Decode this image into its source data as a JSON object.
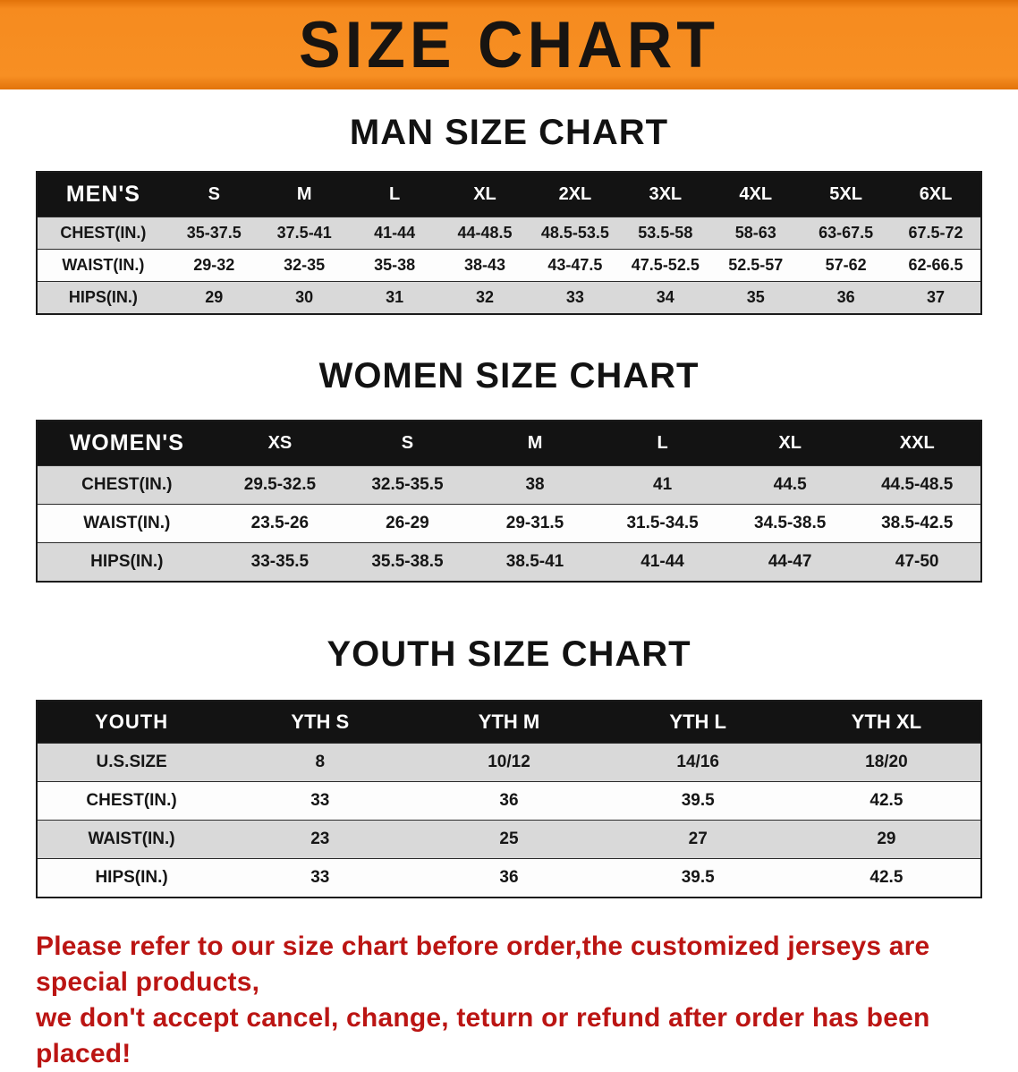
{
  "banner": {
    "title": "SIZE CHART",
    "bg_color": "#f68b1f",
    "text_color": "#181411"
  },
  "sections": [
    {
      "title": "MAN SIZE CHART",
      "table": {
        "header_label": "MEN'S",
        "sizes": [
          "S",
          "M",
          "L",
          "XL",
          "2XL",
          "3XL",
          "4XL",
          "5XL",
          "6XL"
        ],
        "rows": [
          {
            "label": "CHEST(IN.)",
            "values": [
              "35-37.5",
              "37.5-41",
              "41-44",
              "44-48.5",
              "48.5-53.5",
              "53.5-58",
              "58-63",
              "63-67.5",
              "67.5-72"
            ]
          },
          {
            "label": "WAIST(IN.)",
            "values": [
              "29-32",
              "32-35",
              "35-38",
              "38-43",
              "43-47.5",
              "47.5-52.5",
              "52.5-57",
              "57-62",
              "62-66.5"
            ]
          },
          {
            "label": "HIPS(IN.)",
            "values": [
              "29",
              "30",
              "31",
              "32",
              "33",
              "34",
              "35",
              "36",
              "37"
            ]
          }
        ]
      }
    },
    {
      "title": "WOMEN SIZE CHART",
      "table": {
        "header_label": "WOMEN'S",
        "sizes": [
          "XS",
          "S",
          "M",
          "L",
          "XL",
          "XXL"
        ],
        "rows": [
          {
            "label": "CHEST(IN.)",
            "values": [
              "29.5-32.5",
              "32.5-35.5",
              "38",
              "41",
              "44.5",
              "44.5-48.5"
            ]
          },
          {
            "label": "WAIST(IN.)",
            "values": [
              "23.5-26",
              "26-29",
              "29-31.5",
              "31.5-34.5",
              "34.5-38.5",
              "38.5-42.5"
            ]
          },
          {
            "label": "HIPS(IN.)",
            "values": [
              "33-35.5",
              "35.5-38.5",
              "38.5-41",
              "41-44",
              "44-47",
              "47-50"
            ]
          }
        ]
      }
    },
    {
      "title": "YOUTH SIZE CHART",
      "table": {
        "header_label": "YOUTH",
        "sizes": [
          "YTH S",
          "YTH M",
          "YTH L",
          "YTH XL"
        ],
        "rows": [
          {
            "label": "U.S.SIZE",
            "values": [
              "8",
              "10/12",
              "14/16",
              "18/20"
            ]
          },
          {
            "label": "CHEST(IN.)",
            "values": [
              "33",
              "36",
              "39.5",
              "42.5"
            ]
          },
          {
            "label": "WAIST(IN.)",
            "values": [
              "23",
              "25",
              "27",
              "29"
            ]
          },
          {
            "label": "HIPS(IN.)",
            "values": [
              "33",
              "36",
              "39.5",
              "42.5"
            ]
          }
        ]
      }
    }
  ],
  "footer": {
    "line1": "Please refer to our size chart before order,the customized jerseys are special products,",
    "line2": "we don't accept cancel, change, teturn or refund after order has been placed!",
    "text_color": "#bb1513"
  }
}
